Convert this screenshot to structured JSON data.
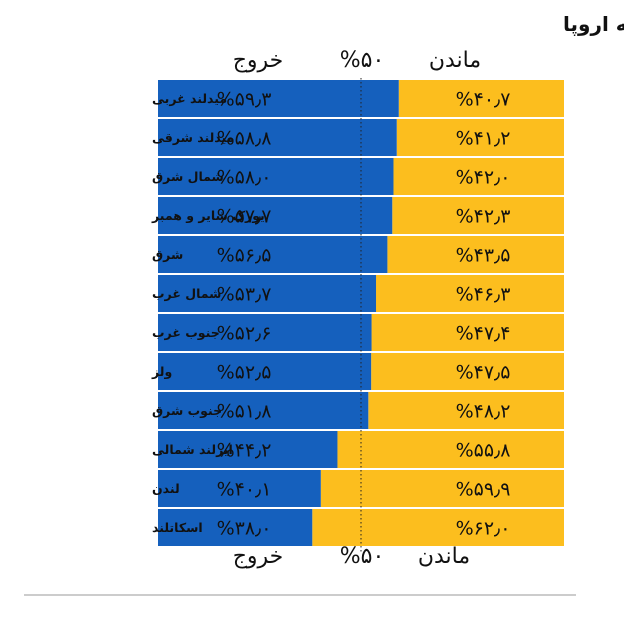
{
  "chart_data": {
    "type": "bar",
    "stacked": true,
    "orientation": "horizontal",
    "title": "پراکندگی رای به خروج از اتحادیه اروپا",
    "header_left": "خروج",
    "header_center": "%۵۰",
    "header_right": "ماندن",
    "categories": [
      "میدلند غربی",
      "میدلند شرقی",
      "شمال شرق",
      "یورک شایر و همبر",
      "شرق",
      "شمال غرب",
      "جنوب غرب",
      "ولز",
      "جنوب شرق",
      "ایرلند شمالی",
      "لندن",
      "اسکاتلند"
    ],
    "series": [
      {
        "name": "خروج",
        "color": "#1560bd",
        "values": [
          59.3,
          58.8,
          58.0,
          57.7,
          56.5,
          53.7,
          52.6,
          52.5,
          51.8,
          44.2,
          40.1,
          38.0
        ],
        "labels": [
          "%۵۹٫۳",
          "%۵۸٫۸",
          "%۵۸٫۰",
          "%۵۷٫۷",
          "%۵۶٫۵",
          "%۵۳٫۷",
          "%۵۲٫۶",
          "%۵۲٫۵",
          "%۵۱٫۸",
          "%۴۴٫۲",
          "%۴۰٫۱",
          "%۳۸٫۰"
        ]
      },
      {
        "name": "ماندن",
        "color": "#fcbe1e",
        "values": [
          40.7,
          41.2,
          42.0,
          42.3,
          43.5,
          46.3,
          47.4,
          47.5,
          48.2,
          55.8,
          59.9,
          62.0
        ],
        "labels": [
          "%۴۰٫۷",
          "%۴۱٫۲",
          "%۴۲٫۰",
          "%۴۲٫۳",
          "%۴۳٫۵",
          "%۴۶٫۳",
          "%۴۷٫۴",
          "%۴۷٫۵",
          "%۴۸٫۲",
          "%۵۵٫۸",
          "%۵۹٫۹",
          "%۶۲٫۰"
        ]
      }
    ],
    "reference_line": 50,
    "xlim": [
      0,
      100
    ],
    "grid": false
  }
}
